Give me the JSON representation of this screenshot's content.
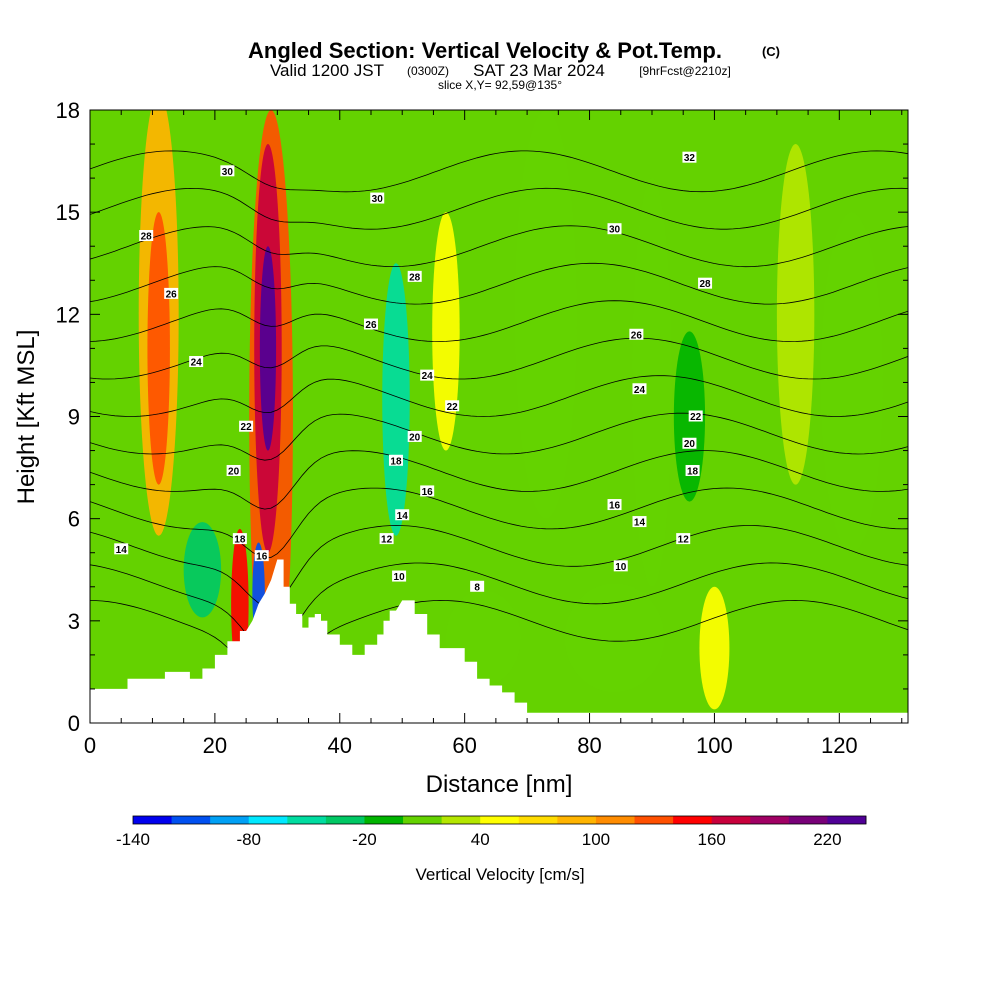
{
  "title": "Angled Section: Vertical Velocity & Pot.Temp.",
  "title_mark": "(C)",
  "subtitle_valid": "Valid 1200 JST",
  "subtitle_z": "(0300Z)",
  "subtitle_date": "SAT 23 Mar 2024",
  "subtitle_fcst": "[9hrFcst@2210z]",
  "slice_label": "slice X,Y= 92,59@135°",
  "colorbar_label": "Vertical Velocity [cm/s]",
  "chart_data": {
    "type": "heatmap",
    "xlabel": "Distance [nm]",
    "ylabel": "Height [Kft MSL]",
    "xlim": [
      0,
      131
    ],
    "ylim": [
      0,
      18
    ],
    "xticks": [
      0,
      20,
      40,
      60,
      80,
      100,
      120
    ],
    "yticks": [
      0,
      3,
      6,
      9,
      12,
      15,
      18
    ],
    "colorbar": {
      "min": -140,
      "max": 240,
      "step": 20,
      "tick_values": [
        -140,
        -80,
        -20,
        40,
        100,
        160,
        220
      ],
      "colors": [
        "#0000ee",
        "#0050f0",
        "#00a0f5",
        "#00e8ff",
        "#00dca0",
        "#00c864",
        "#00b400",
        "#64d200",
        "#b4e600",
        "#ffff00",
        "#ffdc00",
        "#ffb400",
        "#ff8c00",
        "#ff5000",
        "#ff0000",
        "#c8003c",
        "#a00064",
        "#780078",
        "#500096"
      ]
    },
    "terrain": [
      [
        0,
        1
      ],
      [
        6,
        1
      ],
      [
        6,
        1.3
      ],
      [
        12,
        1.3
      ],
      [
        12,
        1.5
      ],
      [
        16,
        1.5
      ],
      [
        16,
        1.3
      ],
      [
        18,
        1.3
      ],
      [
        18,
        1.6
      ],
      [
        20,
        1.6
      ],
      [
        20,
        2
      ],
      [
        22,
        2
      ],
      [
        22,
        2.4
      ],
      [
        24,
        2.4
      ],
      [
        24,
        2.7
      ],
      [
        25,
        2.7
      ],
      [
        26,
        3
      ],
      [
        27,
        3.5
      ],
      [
        28,
        3.8
      ],
      [
        29,
        4.2
      ],
      [
        30,
        4.8
      ],
      [
        31,
        4.8
      ],
      [
        31,
        4
      ],
      [
        32,
        4
      ],
      [
        32,
        3.5
      ],
      [
        33,
        3.5
      ],
      [
        33,
        3.2
      ],
      [
        34,
        3.2
      ],
      [
        34,
        2.8
      ],
      [
        35,
        2.8
      ],
      [
        35,
        3.1
      ],
      [
        36,
        3.1
      ],
      [
        36,
        3.2
      ],
      [
        37,
        3.2
      ],
      [
        37,
        3
      ],
      [
        38,
        3
      ],
      [
        38,
        2.6
      ],
      [
        40,
        2.6
      ],
      [
        40,
        2.3
      ],
      [
        42,
        2.3
      ],
      [
        42,
        2
      ],
      [
        44,
        2
      ],
      [
        44,
        2.3
      ],
      [
        46,
        2.3
      ],
      [
        46,
        2.6
      ],
      [
        47,
        2.6
      ],
      [
        47,
        3
      ],
      [
        48,
        3
      ],
      [
        48,
        3.3
      ],
      [
        49,
        3.3
      ],
      [
        50,
        3.6
      ],
      [
        52,
        3.6
      ],
      [
        52,
        3.2
      ],
      [
        54,
        3.2
      ],
      [
        54,
        2.6
      ],
      [
        56,
        2.6
      ],
      [
        56,
        2.2
      ],
      [
        60,
        2.2
      ],
      [
        60,
        1.8
      ],
      [
        62,
        1.8
      ],
      [
        62,
        1.3
      ],
      [
        64,
        1.3
      ],
      [
        64,
        1.1
      ],
      [
        66,
        1.1
      ],
      [
        66,
        0.9
      ],
      [
        68,
        0.9
      ],
      [
        68,
        0.6
      ],
      [
        70,
        0.6
      ],
      [
        70,
        0.3
      ],
      [
        131,
        0.3
      ]
    ],
    "theta_contour_levels": [
      8,
      10,
      12,
      14,
      16,
      18,
      20,
      22,
      24,
      26,
      28,
      30,
      32
    ],
    "theta_labels": [
      {
        "x": 5,
        "y": 5.1,
        "v": "14"
      },
      {
        "x": 9,
        "y": 14.3,
        "v": "28"
      },
      {
        "x": 13,
        "y": 12.6,
        "v": "26"
      },
      {
        "x": 17,
        "y": 10.6,
        "v": "24"
      },
      {
        "x": 22,
        "y": 16.2,
        "v": "30"
      },
      {
        "x": 25,
        "y": 8.7,
        "v": "22"
      },
      {
        "x": 23,
        "y": 7.4,
        "v": "20"
      },
      {
        "x": 24,
        "y": 5.4,
        "v": "18"
      },
      {
        "x": 27.5,
        "y": 4.9,
        "v": "16"
      },
      {
        "x": 46,
        "y": 15.4,
        "v": "30"
      },
      {
        "x": 52,
        "y": 13.1,
        "v": "28"
      },
      {
        "x": 45,
        "y": 11.7,
        "v": "26"
      },
      {
        "x": 54,
        "y": 10.2,
        "v": "24"
      },
      {
        "x": 58,
        "y": 9.3,
        "v": "22"
      },
      {
        "x": 52,
        "y": 8.4,
        "v": "20"
      },
      {
        "x": 49,
        "y": 7.7,
        "v": "18"
      },
      {
        "x": 54,
        "y": 6.8,
        "v": "16"
      },
      {
        "x": 50,
        "y": 6.1,
        "v": "14"
      },
      {
        "x": 47.5,
        "y": 5.4,
        "v": "12"
      },
      {
        "x": 49.5,
        "y": 4.3,
        "v": "10"
      },
      {
        "x": 62,
        "y": 4.0,
        "v": "8"
      },
      {
        "x": 84,
        "y": 14.5,
        "v": "30"
      },
      {
        "x": 96,
        "y": 16.6,
        "v": "32"
      },
      {
        "x": 98.5,
        "y": 12.9,
        "v": "28"
      },
      {
        "x": 87.5,
        "y": 11.4,
        "v": "26"
      },
      {
        "x": 88,
        "y": 9.8,
        "v": "24"
      },
      {
        "x": 97,
        "y": 9.0,
        "v": "22"
      },
      {
        "x": 96,
        "y": 8.2,
        "v": "20"
      },
      {
        "x": 96.5,
        "y": 7.4,
        "v": "18"
      },
      {
        "x": 84,
        "y": 6.4,
        "v": "16"
      },
      {
        "x": 88,
        "y": 5.9,
        "v": "14"
      },
      {
        "x": 95,
        "y": 5.4,
        "v": "12"
      },
      {
        "x": 85,
        "y": 4.6,
        "v": "10"
      }
    ]
  }
}
